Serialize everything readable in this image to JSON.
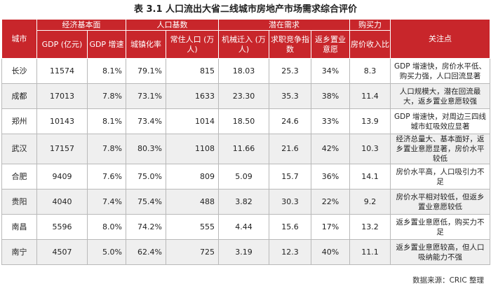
{
  "title": "表 3.1   人口流出大省二线城市房地产市场需求综合评价",
  "header_groups": {
    "city": "城市",
    "economy": "经济基本面",
    "population": "人口基数",
    "potential": "潜在需求",
    "purchasing": "购买力",
    "focus": "关注点"
  },
  "header_columns": {
    "gdp": "GDP (亿元)",
    "gdp_growth": "GDP 增速",
    "urbanization": "城镇化率",
    "resident_pop": "常住人口 (万人)",
    "migration": "机械迁入 (万人)",
    "job_competition": "求职竞争指数",
    "return_intent": "返乡置业意愿",
    "price_income": "房价收入比"
  },
  "rows": [
    {
      "city": "长沙",
      "gdp": "11574",
      "gdp_growth": "8.1%",
      "urbanization": "79.1%",
      "resident_pop": "815",
      "migration": "18.03",
      "job_competition": "25.3",
      "return_intent": "34%",
      "price_income": "8.3",
      "focus": "GDP 增速快，房价水平低、购买力强，人口回流显著"
    },
    {
      "city": "成都",
      "gdp": "17013",
      "gdp_growth": "7.8%",
      "urbanization": "73.1%",
      "resident_pop": "1633",
      "migration": "23.30",
      "job_competition": "35.3",
      "return_intent": "38%",
      "price_income": "11.4",
      "focus": "人口规模大，潜在回流最大，返乡置业意愿较强"
    },
    {
      "city": "郑州",
      "gdp": "10143",
      "gdp_growth": "8.1%",
      "urbanization": "73.4%",
      "resident_pop": "1014",
      "migration": "18.50",
      "job_competition": "24.6",
      "return_intent": "33%",
      "price_income": "13.9",
      "focus": "GDP 增速快，对周边三四线城市虹吸效应显著"
    },
    {
      "city": "武汉",
      "gdp": "17157",
      "gdp_growth": "7.8%",
      "urbanization": "80.3%",
      "resident_pop": "1108",
      "migration": "11.66",
      "job_competition": "21.6",
      "return_intent": "42%",
      "price_income": "10.3",
      "focus": "经济总量大、基本面好，返乡置业意愿显著，房价水平较低"
    },
    {
      "city": "合肥",
      "gdp": "9409",
      "gdp_growth": "7.6%",
      "urbanization": "75.0%",
      "resident_pop": "809",
      "migration": "5.09",
      "job_competition": "15.7",
      "return_intent": "36%",
      "price_income": "14.1",
      "focus": "房价水平高，人口吸引力不足"
    },
    {
      "city": "贵阳",
      "gdp": "4040",
      "gdp_growth": "7.4%",
      "urbanization": "75.4%",
      "resident_pop": "488",
      "migration": "3.82",
      "job_competition": "30.3",
      "return_intent": "22%",
      "price_income": "9.2",
      "focus": "房价水平相对较低，但返乡置业意愿较低"
    },
    {
      "city": "南昌",
      "gdp": "5596",
      "gdp_growth": "8.0%",
      "urbanization": "74.2%",
      "resident_pop": "555",
      "migration": "4.44",
      "job_competition": "15.6",
      "return_intent": "17%",
      "price_income": "13.2",
      "focus": "返乡置业意愿低，购买力不足"
    },
    {
      "city": "南宁",
      "gdp": "4507",
      "gdp_growth": "5.0%",
      "urbanization": "62.4%",
      "resident_pop": "725",
      "migration": "3.19",
      "job_competition": "12.3",
      "return_intent": "40%",
      "price_income": "11.1",
      "focus": "返乡置业意愿较高，但人口吸纳能力不强"
    }
  ],
  "source": "数据来源：CRIC 整理"
}
